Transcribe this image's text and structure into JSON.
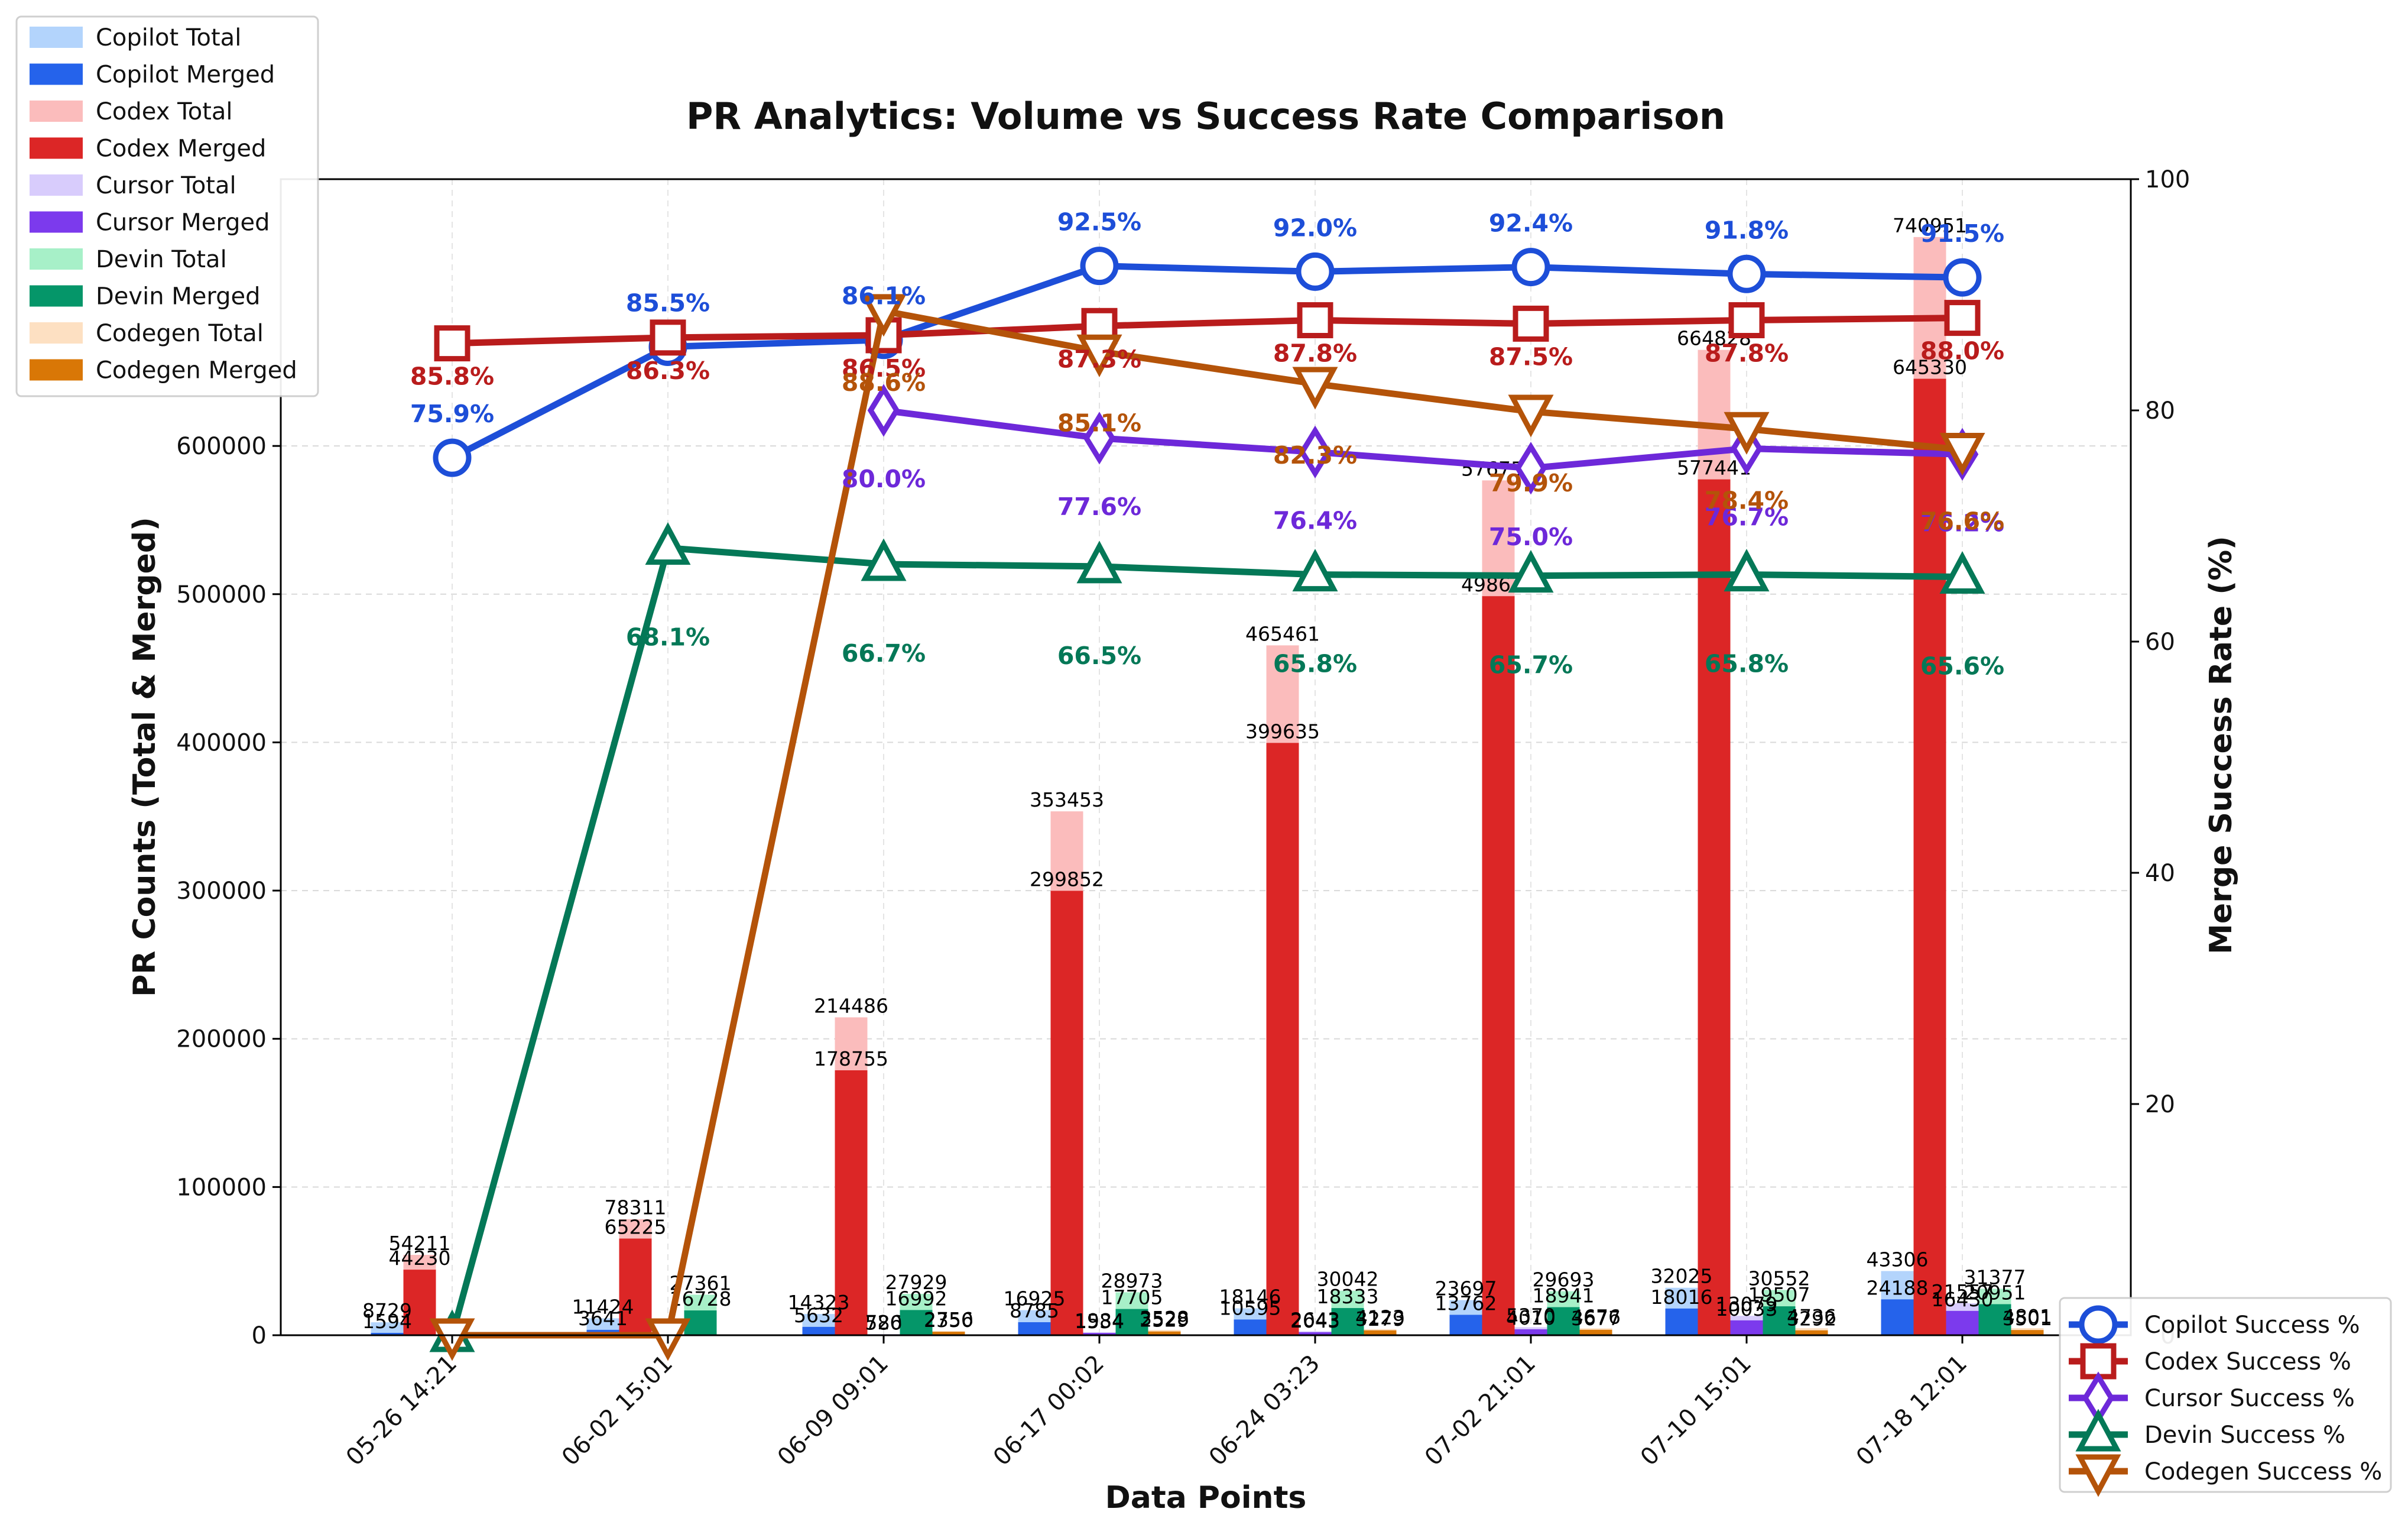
{
  "chart_data": {
    "type": "bar+line",
    "title": "PR Analytics: Volume vs Success Rate Comparison",
    "xlabel": "Data Points",
    "ylabel": "PR Counts (Total & Merged)",
    "y2label": "Merge Success Rate (%)",
    "categories": [
      "05-26 14:21",
      "06-02 15:01",
      "06-09 09:01",
      "06-17 00:02",
      "06-24 03:23",
      "07-02 21:01",
      "07-10 15:01",
      "07-18 12:01"
    ],
    "ylim": [
      0,
      780000
    ],
    "y2lim": [
      0,
      100
    ],
    "yticks": [
      0,
      100000,
      200000,
      300000,
      400000,
      500000,
      600000
    ],
    "y2ticks": [
      20,
      40,
      60,
      80,
      100
    ],
    "grid": true,
    "legend_bars_position": "top-left",
    "legend_lines_position": "bottom-right",
    "bar_series": [
      {
        "name": "Copilot",
        "total_label": "Copilot Total",
        "merged_label": "Copilot Merged",
        "total_color": "#b3d4fc",
        "merged_color": "#2563eb",
        "total": [
          8729,
          11424,
          14323,
          16925,
          18146,
          23697,
          32025,
          43306
        ],
        "merged": [
          1594,
          3641,
          5632,
          8785,
          10595,
          13762,
          18016,
          24188
        ]
      },
      {
        "name": "Codex",
        "total_label": "Codex Total",
        "merged_label": "Codex Merged",
        "total_color": "#fbbcbc",
        "merged_color": "#dc2626",
        "total": [
          54211,
          78311,
          214486,
          353453,
          465461,
          576759,
          664828,
          740951
        ],
        "merged": [
          44230,
          65225,
          178755,
          299852,
          399635,
          498645,
          577441,
          645330
        ]
      },
      {
        "name": "Cursor",
        "total_label": "Cursor Total",
        "merged_label": "Cursor Merged",
        "total_color": "#d8ccfc",
        "merged_color": "#7c3aed",
        "total": [
          0,
          0,
          726,
          1984,
          2643,
          5370,
          13079,
          21557
        ],
        "merged": [
          0,
          0,
          580,
          1534,
          2043,
          4010,
          10033,
          16430
        ]
      },
      {
        "name": "Devin",
        "total_label": "Devin Total",
        "merged_label": "Devin Merged",
        "total_color": "#a7f0c8",
        "merged_color": "#059669",
        "total": [
          0,
          27361,
          27929,
          28973,
          30042,
          29693,
          30552,
          31377
        ],
        "merged": [
          0,
          16728,
          16992,
          17705,
          18333,
          18941,
          19507,
          20951
        ]
      },
      {
        "name": "Codegen",
        "total_label": "Codegen Total",
        "merged_label": "Codegen Merged",
        "total_color": "#fde0c2",
        "merged_color": "#d97706",
        "total": [
          0,
          0,
          2756,
          3528,
          4123,
          4676,
          4736,
          4801
        ],
        "merged": [
          0,
          0,
          2350,
          2529,
          3279,
          3677,
          3292,
          3501
        ]
      }
    ],
    "line_series": [
      {
        "name": "Copilot Success %",
        "color": "#1d4ed8",
        "marker": "circle",
        "values": [
          75.9,
          85.5,
          86.1,
          92.5,
          92.0,
          92.4,
          91.8,
          91.5
        ],
        "labels": [
          "75.9%",
          "85.5%",
          "86.1%",
          "92.5%",
          "92.0%",
          "92.4%",
          "91.8%",
          "91.5%"
        ]
      },
      {
        "name": "Codex Success %",
        "color": "#b91c1c",
        "marker": "square",
        "values": [
          85.8,
          86.3,
          86.5,
          87.3,
          87.8,
          87.5,
          87.8,
          88.0
        ],
        "labels": [
          "85.8%",
          "86.3%",
          "86.5%",
          "87.3%",
          "87.8%",
          "87.5%",
          "87.8%",
          "88.0%"
        ]
      },
      {
        "name": "Cursor Success %",
        "color": "#6d28d9",
        "marker": "diamond",
        "values": [
          null,
          null,
          80.0,
          77.6,
          76.4,
          75.0,
          76.7,
          76.2
        ],
        "labels": [
          "",
          "",
          "80.0%",
          "77.6%",
          "76.4%",
          "75.0%",
          "76.7%",
          "76.2%"
        ]
      },
      {
        "name": "Devin Success %",
        "color": "#047857",
        "marker": "triangle-up",
        "values": [
          0,
          68.1,
          66.7,
          66.5,
          65.8,
          65.7,
          65.8,
          65.6
        ],
        "labels": [
          "",
          "68.1%",
          "66.7%",
          "66.5%",
          "65.8%",
          "65.7%",
          "65.8%",
          "65.6%"
        ]
      },
      {
        "name": "Codegen Success %",
        "color": "#b45309",
        "marker": "triangle-down",
        "values": [
          0,
          0,
          88.6,
          85.1,
          82.3,
          79.9,
          78.4,
          76.6
        ],
        "labels": [
          "",
          "",
          "88.6%",
          "85.1%",
          "82.3%",
          "79.9%",
          "78.4%",
          "76.6%"
        ]
      }
    ]
  }
}
